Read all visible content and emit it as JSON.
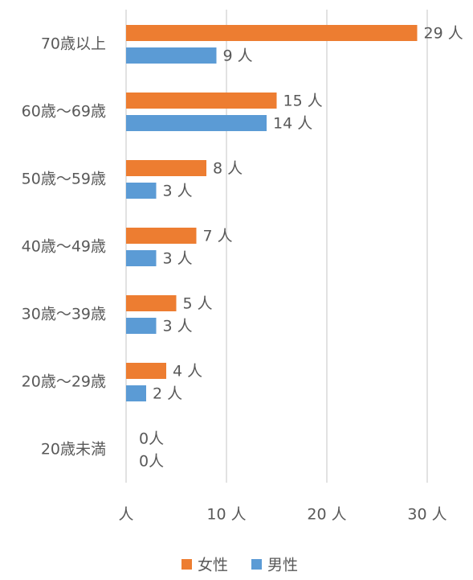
{
  "chart_data": {
    "type": "bar",
    "orientation": "horizontal",
    "categories": [
      "70歳以上",
      "60歳～69歳",
      "50歳～59歳",
      "40歳～49歳",
      "30歳～39歳",
      "20歳～29歳",
      "20歳未満"
    ],
    "series": [
      {
        "name": "女性",
        "color": "#ed7d31",
        "values": [
          29,
          15,
          8,
          7,
          5,
          4,
          0
        ],
        "value_labels": [
          "29 人",
          "15 人",
          "8 人",
          "7 人",
          "5 人",
          "4 人",
          "0人"
        ]
      },
      {
        "name": "男性",
        "color": "#5b9bd5",
        "values": [
          9,
          14,
          3,
          3,
          3,
          2,
          0
        ],
        "value_labels": [
          "9 人",
          "14 人",
          "3 人",
          "3 人",
          "3 人",
          "2 人",
          "0人"
        ]
      }
    ],
    "xlim": [
      0,
      33
    ],
    "xticks": [
      {
        "value": 0,
        "label": "人"
      },
      {
        "value": 10,
        "label": "10 人"
      },
      {
        "value": 20,
        "label": "20 人"
      },
      {
        "value": 30,
        "label": "30 人"
      }
    ],
    "grid": true,
    "legend": "bottom"
  }
}
